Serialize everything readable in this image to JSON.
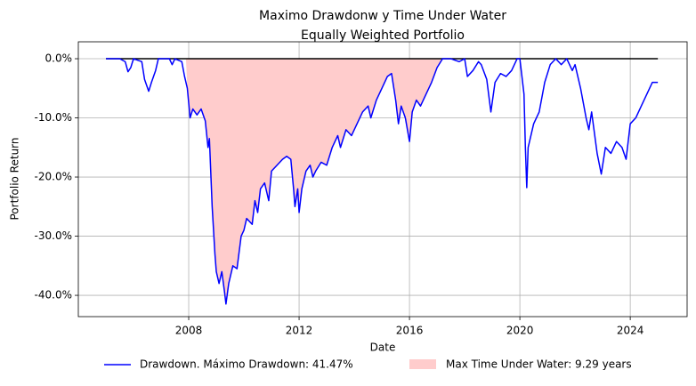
{
  "chart_data": {
    "type": "line",
    "title": [
      "Maximo Drawdonw y Time Under Water",
      "Equally Weighted Portfolio"
    ],
    "xlabel": "Date",
    "ylabel": "Portfolio Return",
    "x": [
      2005.0,
      2005.5,
      2005.7,
      2005.8,
      2005.9,
      2006.0,
      2006.3,
      2006.4,
      2006.55,
      2006.65,
      2006.8,
      2006.9,
      2007.3,
      2007.4,
      2007.5,
      2007.75,
      2007.85,
      2007.95,
      2008.05,
      2008.15,
      2008.3,
      2008.45,
      2008.6,
      2008.7,
      2008.75,
      2008.85,
      2008.95,
      2009.0,
      2009.1,
      2009.2,
      2009.3,
      2009.35,
      2009.45,
      2009.6,
      2009.75,
      2009.9,
      2010.0,
      2010.1,
      2010.3,
      2010.4,
      2010.5,
      2010.6,
      2010.75,
      2010.9,
      2011.0,
      2011.2,
      2011.4,
      2011.55,
      2011.7,
      2011.8,
      2011.85,
      2011.95,
      2012.0,
      2012.1,
      2012.25,
      2012.4,
      2012.5,
      2012.6,
      2012.8,
      2013.0,
      2013.2,
      2013.4,
      2013.5,
      2013.7,
      2013.9,
      2014.1,
      2014.3,
      2014.5,
      2014.6,
      2014.8,
      2015.0,
      2015.2,
      2015.35,
      2015.5,
      2015.6,
      2015.7,
      2015.85,
      2016.0,
      2016.1,
      2016.25,
      2016.4,
      2016.6,
      2016.8,
      2017.0,
      2017.2,
      2017.5,
      2017.8,
      2018.0,
      2018.1,
      2018.3,
      2018.5,
      2018.6,
      2018.8,
      2018.95,
      2019.1,
      2019.3,
      2019.5,
      2019.7,
      2019.9,
      2020.0,
      2020.15,
      2020.2,
      2020.25,
      2020.3,
      2020.5,
      2020.7,
      2020.9,
      2021.1,
      2021.3,
      2021.5,
      2021.7,
      2021.9,
      2022.0,
      2022.2,
      2022.4,
      2022.5,
      2022.6,
      2022.8,
      2022.95,
      2023.1,
      2023.3,
      2023.5,
      2023.7,
      2023.85,
      2024.0,
      2024.2,
      2024.4,
      2024.6,
      2024.8,
      2025.0
    ],
    "series": [
      {
        "name": "Drawdown. Máximo Drawdown: 41.47%",
        "color": "#0000ff",
        "values": [
          0,
          0,
          -0.5,
          -2.2,
          -1.5,
          0,
          -0.5,
          -3.5,
          -5.5,
          -4,
          -2,
          0,
          0,
          -1,
          0,
          -0.5,
          -3,
          -5,
          -10,
          -8.5,
          -9.5,
          -8.5,
          -10.5,
          -15,
          -13.5,
          -25,
          -33,
          -36,
          -38,
          -36,
          -39.5,
          -41.47,
          -38,
          -35,
          -35.5,
          -30,
          -29,
          -27,
          -28,
          -24,
          -26,
          -22,
          -21,
          -24,
          -19,
          -18,
          -17,
          -16.5,
          -17,
          -22,
          -25,
          -22,
          -26,
          -22,
          -19,
          -18,
          -20,
          -19,
          -17.5,
          -18,
          -15,
          -13,
          -15,
          -12,
          -13,
          -11,
          -9,
          -8,
          -10,
          -7,
          -5,
          -3,
          -2.5,
          -7,
          -11,
          -8,
          -10,
          -14,
          -9,
          -7,
          -8,
          -6,
          -4,
          -1.5,
          0,
          0,
          -0.5,
          0,
          -3,
          -2,
          -0.5,
          -1,
          -3.5,
          -9,
          -4,
          -2.5,
          -3,
          -2,
          0,
          0,
          -6,
          -15,
          -21.8,
          -15,
          -11,
          -9,
          -4,
          -1,
          0,
          -1,
          0,
          -2,
          -1,
          -5,
          -10,
          -12,
          -9,
          -16,
          -19.5,
          -15,
          -16,
          -14,
          -15,
          -17,
          -11,
          -10,
          -8,
          -6,
          -4,
          -4
        ]
      }
    ],
    "underwater": {
      "name": "Max Time Under Water: 9.29 years",
      "color": "#ffcccc",
      "range": [
        2007.9,
        2017.19
      ]
    },
    "zero_line": {
      "color": "#000000",
      "value": 0,
      "range": [
        2005.0,
        2025.0
      ]
    },
    "xlim": [
      2004.0,
      2026.06
    ],
    "xticks": [
      2008,
      2012,
      2016,
      2020,
      2024
    ],
    "ylim": [
      -43.6,
      2.86
    ],
    "yticks": [
      {
        "value": 0,
        "label": "0.0%"
      },
      {
        "value": -10,
        "label": "-10.0%"
      },
      {
        "value": -20,
        "label": "-20.0%"
      },
      {
        "value": -30,
        "label": "-30.0%"
      },
      {
        "value": -40,
        "label": "-40.0%"
      }
    ],
    "grid": true
  }
}
